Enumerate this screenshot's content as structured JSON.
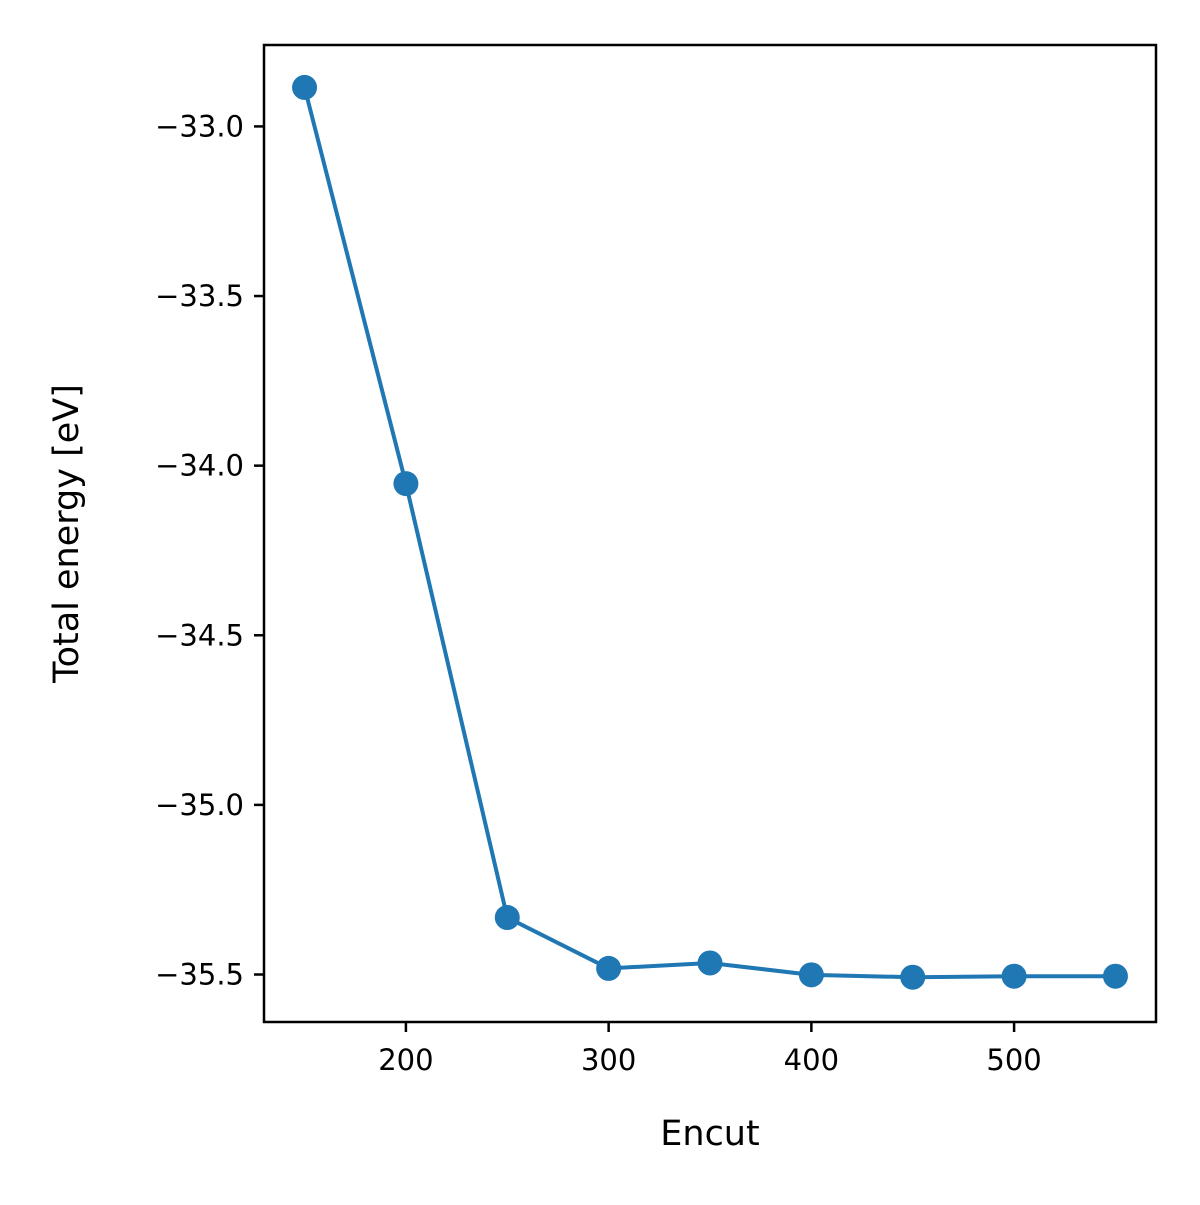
{
  "chart_data": {
    "type": "line",
    "title": "",
    "xlabel": "Encut",
    "ylabel": "Total energy [eV]",
    "x": [
      150,
      200,
      250,
      300,
      350,
      400,
      450,
      500,
      550
    ],
    "series": [
      {
        "values": [
          -32.885,
          -34.053,
          -35.332,
          -35.482,
          -35.466,
          -35.501,
          -35.508,
          -35.505,
          -35.505
        ],
        "color": "#1f77b4",
        "marker": "circle"
      }
    ],
    "xlim": [
      130,
      570
    ],
    "ylim": [
      -35.64,
      -32.76
    ],
    "xticks": [
      200,
      300,
      400,
      500
    ],
    "xtick_labels": [
      "200",
      "300",
      "400",
      "500"
    ],
    "yticks": [
      -33.0,
      -33.5,
      -34.0,
      -34.5,
      -35.0,
      -35.5
    ],
    "ytick_labels": [
      "−33.0",
      "−33.5",
      "−34.0",
      "−34.5",
      "−35.0",
      "−35.5"
    ],
    "grid": false,
    "legend": "none"
  }
}
